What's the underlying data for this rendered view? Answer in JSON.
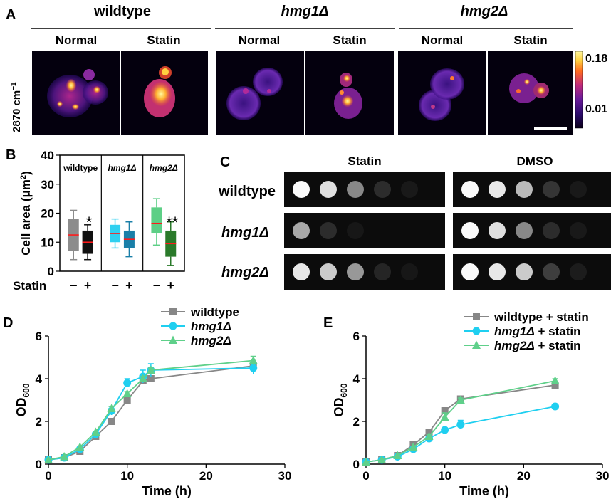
{
  "panel_a": {
    "letter": "A",
    "groups": [
      "wildtype",
      "hmg1Δ",
      "hmg2Δ"
    ],
    "conditions": [
      "Normal",
      "Statin"
    ],
    "row_label_main": "2870 cm",
    "row_label_sup": "−1",
    "colorbar": {
      "max": "0.18",
      "min": "0.01",
      "colors": [
        "#0a0018",
        "#2a0a6a",
        "#6a1a9a",
        "#c02a7a",
        "#ff6a20",
        "#ffd040",
        "#fff8a0"
      ]
    }
  },
  "panel_c": {
    "letter": "C",
    "conditions": [
      "Statin",
      "DMSO"
    ],
    "rows": [
      "wildtype",
      "hmg1Δ",
      "hmg2Δ"
    ]
  },
  "chart_data": [
    {
      "type": "box",
      "panel": "B",
      "ylabel_main": "Cell area (μm",
      "ylabel_sup": "2",
      "ylabel_close": ")",
      "ylim": [
        0,
        40
      ],
      "yticks": [
        "0",
        "10",
        "20",
        "30",
        "40"
      ],
      "groups": [
        "wildtype",
        "hmg1Δ",
        "hmg2Δ"
      ],
      "xlabel": "Statin",
      "conditions": [
        "−",
        "+"
      ],
      "series": [
        {
          "group": "wildtype",
          "statin": "−",
          "whisker_low": 4,
          "q1": 7,
          "median": 12.5,
          "q3": 18,
          "whisker_high": 21,
          "color": "#8c8c8c",
          "sig": ""
        },
        {
          "group": "wildtype",
          "statin": "+",
          "whisker_low": 4,
          "q1": 6,
          "median": 10,
          "q3": 14,
          "whisker_high": 16,
          "color": "#111111",
          "sig": "*"
        },
        {
          "group": "hmg1Δ",
          "statin": "−",
          "whisker_low": 8,
          "q1": 10,
          "median": 13,
          "q3": 16,
          "whisker_high": 18,
          "color": "#2fd0f0",
          "sig": ""
        },
        {
          "group": "hmg1Δ",
          "statin": "+",
          "whisker_low": 5,
          "q1": 8,
          "median": 11,
          "q3": 14,
          "whisker_high": 17,
          "color": "#1a7fa8",
          "sig": ""
        },
        {
          "group": "hmg2Δ",
          "statin": "−",
          "whisker_low": 9,
          "q1": 13,
          "median": 16.5,
          "q3": 22,
          "whisker_high": 25,
          "color": "#5dcf86",
          "sig": ""
        },
        {
          "group": "hmg2Δ",
          "statin": "+",
          "whisker_low": 2,
          "q1": 5,
          "median": 9.5,
          "q3": 14,
          "whisker_high": 17,
          "color": "#2a7a2a",
          "sig": "**"
        }
      ]
    },
    {
      "type": "line",
      "panel": "D",
      "xlabel": "Time (h)",
      "ylabel_main": "OD",
      "ylabel_sub": "600",
      "xlim": [
        0,
        30
      ],
      "ylim": [
        0,
        6
      ],
      "xticks": [
        "0",
        "10",
        "20",
        "30"
      ],
      "yticks": [
        "0",
        "2",
        "4",
        "6"
      ],
      "legend_position": "top-right",
      "series": [
        {
          "name": "wildtype",
          "color": "#878787",
          "marker": "square",
          "x": [
            0,
            2,
            4,
            6,
            8,
            10,
            12,
            13,
            26
          ],
          "y": [
            0.2,
            0.3,
            0.6,
            1.3,
            2.0,
            3.0,
            3.9,
            4.0,
            4.6
          ],
          "err": [
            0,
            0,
            0,
            0,
            0,
            0.1,
            0.1,
            0.1,
            0
          ]
        },
        {
          "name": "hmg1Δ",
          "color": "#1fcff0",
          "marker": "circle",
          "x": [
            0,
            2,
            4,
            6,
            8,
            10,
            12,
            13,
            26
          ],
          "y": [
            0.2,
            0.3,
            0.7,
            1.4,
            2.5,
            3.8,
            4.1,
            4.4,
            4.5
          ],
          "err": [
            0,
            0,
            0,
            0,
            0.2,
            0.2,
            0.3,
            0.3,
            0.3
          ]
        },
        {
          "name": "hmg2Δ",
          "color": "#5fd08a",
          "marker": "triangle",
          "x": [
            0,
            2,
            4,
            6,
            8,
            10,
            12,
            13,
            26
          ],
          "y": [
            0.2,
            0.35,
            0.8,
            1.5,
            2.6,
            3.3,
            4.0,
            4.4,
            4.85
          ],
          "err": [
            0,
            0,
            0,
            0,
            0.1,
            0.1,
            0.1,
            0.1,
            0.2
          ]
        }
      ]
    },
    {
      "type": "line",
      "panel": "E",
      "xlabel": "Time (h)",
      "ylabel_main": "OD",
      "ylabel_sub": "600",
      "xlim": [
        0,
        30
      ],
      "ylim": [
        0,
        6
      ],
      "xticks": [
        "0",
        "10",
        "20",
        "30"
      ],
      "yticks": [
        "0",
        "2",
        "4",
        "6"
      ],
      "legend_position": "top-right",
      "series": [
        {
          "name": "wildtype + statin",
          "color": "#878787",
          "marker": "square",
          "x": [
            0,
            2,
            4,
            6,
            8,
            10,
            12,
            24
          ],
          "y": [
            0.1,
            0.2,
            0.4,
            0.9,
            1.5,
            2.5,
            3.05,
            3.7
          ],
          "err": [
            0,
            0,
            0,
            0,
            0.1,
            0.1,
            0.1,
            0.1
          ]
        },
        {
          "name": "hmg1Δ + statin",
          "color": "#1fcff0",
          "marker": "circle",
          "x": [
            0,
            2,
            4,
            6,
            8,
            10,
            12,
            24
          ],
          "y": [
            0.1,
            0.2,
            0.35,
            0.7,
            1.2,
            1.6,
            1.85,
            2.7
          ],
          "err": [
            0,
            0,
            0,
            0,
            0.1,
            0.1,
            0.2,
            0
          ]
        },
        {
          "name": "hmg2Δ + statin",
          "color": "#5fd08a",
          "marker": "triangle",
          "x": [
            0,
            2,
            4,
            6,
            8,
            10,
            12,
            24
          ],
          "y": [
            0.1,
            0.2,
            0.4,
            0.8,
            1.3,
            2.2,
            3.0,
            3.9
          ],
          "err": [
            0,
            0,
            0,
            0,
            0.1,
            0.2,
            0.1,
            0.1
          ]
        }
      ]
    }
  ],
  "panel_letters": {
    "b": "B",
    "d": "D",
    "e": "E"
  }
}
